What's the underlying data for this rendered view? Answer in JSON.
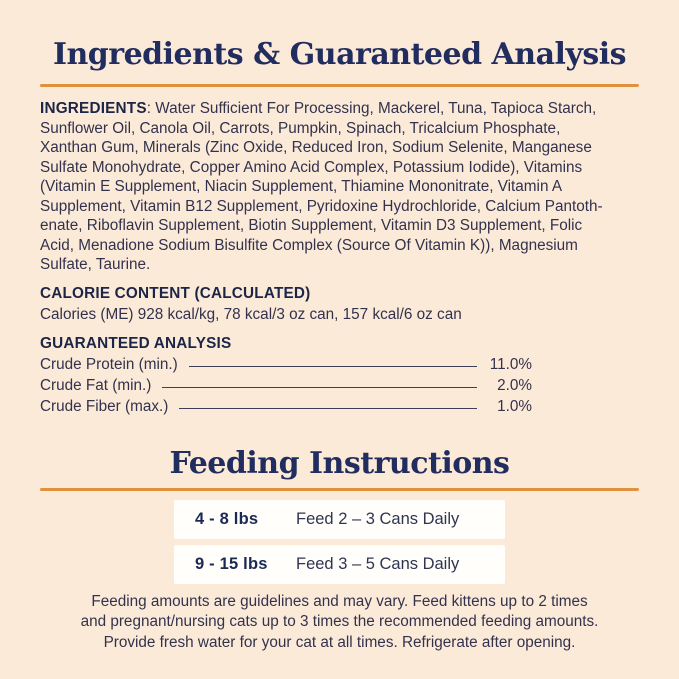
{
  "colors": {
    "background": "#FCEAD9",
    "accent_orange": "#E1913E",
    "heading_navy": "#212C5F",
    "bold_label_navy": "#1C2546",
    "body_text": "#32324D",
    "table_row_white": "#FFFEFA"
  },
  "section1": {
    "title": "Ingredients & Guaranteed Analysis",
    "ingredients": {
      "label": "INGREDIENTS",
      "lines": [
        ": Water Sufficient For Processing, Mackerel, Tuna, Tapioca Starch,",
        "Sunflower Oil, Canola Oil, Carrots, Pumpkin, Spinach, Tricalcium Phosphate,",
        "Xanthan Gum, Minerals (Zinc Oxide, Reduced Iron, Sodium Selenite, Manganese",
        "Sulfate Monohydrate, Copper Amino Acid Complex, Potassium Iodide), Vitamins",
        "(Vitamin E Supplement, Niacin Supplement, Thiamine Mononitrate, Vitamin A",
        "Supplement, Vitamin B12 Supplement, Pyridoxine Hydrochloride, Calcium Pantoth-",
        "enate, Riboflavin Supplement, Biotin Supplement, Vitamin D3 Supplement, Folic",
        "Acid, Menadione Sodium Bisulfite Complex (Source Of Vitamin K)), Magnesium",
        "Sulfate, Taurine."
      ]
    },
    "calorie": {
      "heading": "CALORIE CONTENT (CALCULATED)",
      "text": "Calories (ME) 928 kcal/kg, 78 kcal/3 oz can, 157 kcal/6 oz can"
    },
    "analysis": {
      "heading": "GUARANTEED ANALYSIS",
      "rows": [
        {
          "label": "Crude Protein (min.)",
          "value": "11.0%"
        },
        {
          "label": "Crude Fat (min.)",
          "value": "2.0%"
        },
        {
          "label": "Crude Fiber (max.)",
          "value": "1.0%"
        }
      ]
    }
  },
  "section2": {
    "title": "Feeding Instructions",
    "rows": [
      {
        "range": "4 - 8 lbs",
        "amount": "Feed 2 – 3 Cans Daily"
      },
      {
        "range": "9 - 15 lbs",
        "amount": "Feed 3 – 5 Cans Daily"
      }
    ],
    "note_lines": [
      "Feeding amounts are guidelines and may vary. Feed kittens up to 2 times",
      "and pregnant/nursing cats up to 3 times the recommended feeding amounts.",
      "Provide fresh water for your cat at all times. Refrigerate after opening."
    ]
  }
}
